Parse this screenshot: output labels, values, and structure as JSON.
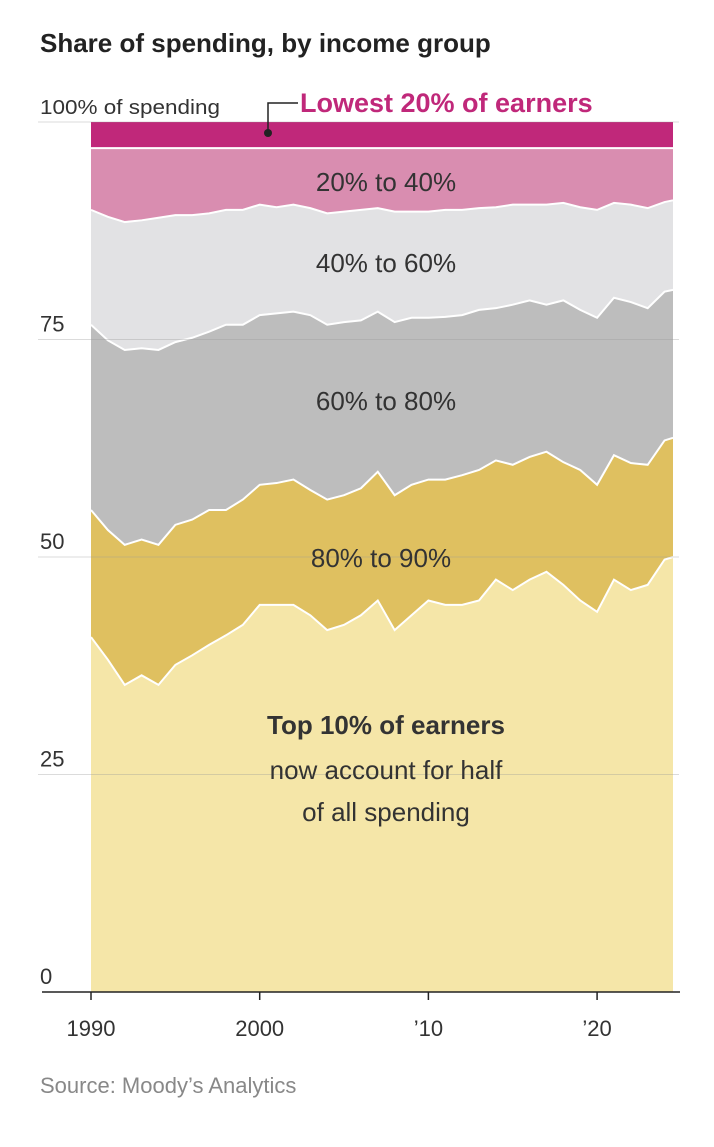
{
  "chart_data": {
    "type": "stacked-area",
    "title": "Share of spending, by income group",
    "source": "Source: Moody’s Analytics",
    "annotation": [
      "now account for half",
      "of all spending"
    ],
    "x": [
      1990,
      1991,
      1992,
      1993,
      1994,
      1995,
      1996,
      1997,
      1998,
      1999,
      2000,
      2001,
      2002,
      2003,
      2004,
      2005,
      2006,
      2007,
      2008,
      2009,
      2010,
      2011,
      2012,
      2013,
      2014,
      2015,
      2016,
      2017,
      2018,
      2019,
      2020,
      2021,
      2022,
      2023,
      2024,
      2024.5
    ],
    "xlim": [
      1990,
      2024.5
    ],
    "xticks": [
      1990,
      2000,
      {
        "value": 2010,
        "label": "’10"
      },
      {
        "value": 2020,
        "label": "’20"
      }
    ],
    "ylim": [
      0,
      100
    ],
    "yticks": [
      0,
      25,
      50,
      75,
      {
        "value": 100,
        "label": "100% of spending"
      }
    ],
    "grid": true,
    "series": [
      {
        "name": "Top 10% of earners",
        "color": "#f5e6a8",
        "values": [
          40.8,
          38.2,
          35.3,
          36.4,
          35.3,
          37.6,
          38.7,
          39.9,
          41,
          42.2,
          44.5,
          44.5,
          44.5,
          43.3,
          41.6,
          42.2,
          43.3,
          45,
          41.6,
          43.3,
          45,
          44.5,
          44.5,
          45,
          47.4,
          46.2,
          47.4,
          48.3,
          46.8,
          45,
          43.7,
          47.4,
          46.2,
          46.8,
          49.7,
          50
        ]
      },
      {
        "name": "80% to 90%",
        "color": "#dfc060",
        "values": [
          14.6,
          14.9,
          16.1,
          15.6,
          16.1,
          16.1,
          15.6,
          15.5,
          14.4,
          14.4,
          13.8,
          14,
          14.4,
          14.4,
          15,
          14.9,
          14.6,
          14.8,
          15.5,
          15,
          13.9,
          14.4,
          14.9,
          15,
          13.7,
          14.4,
          14.1,
          13.8,
          14.1,
          15,
          14.6,
          14.3,
          14.6,
          13.8,
          13.7,
          13.7
        ]
      },
      {
        "name": "60% to 80%",
        "color": "#bdbdbd",
        "values": [
          21.3,
          21.8,
          22.4,
          22,
          22.4,
          21,
          20.9,
          20.5,
          21.3,
          20.1,
          19.5,
          19.5,
          19.3,
          20.1,
          20.1,
          19.9,
          19.3,
          18.4,
          19.9,
          19.2,
          18.6,
          18.7,
          18.4,
          18.4,
          17.5,
          18.4,
          18,
          16.9,
          18.6,
          18.4,
          19.2,
          18.1,
          18.5,
          18,
          17.1,
          17
        ]
      },
      {
        "name": "40% to 60%",
        "color": "#e2e2e4",
        "values": [
          13.2,
          14.2,
          14.7,
          14.7,
          15.2,
          14.6,
          14.1,
          13.6,
          13.2,
          13.2,
          12.7,
          12.2,
          12.3,
          12.3,
          12.8,
          12.7,
          12.7,
          11.9,
          12.7,
          12.2,
          12.2,
          12.3,
          12.1,
          11.7,
          11.6,
          11.5,
          11,
          11.5,
          11.2,
          11.8,
          12.4,
          10.9,
          11.2,
          11.5,
          10.3,
          10.3
        ]
      },
      {
        "name": "20% to 40%",
        "color": "#d98db0",
        "values": [
          7.1,
          7.9,
          8.5,
          8.3,
          8,
          7.7,
          7.7,
          7.5,
          7.1,
          7.1,
          6.5,
          6.8,
          6.5,
          6.9,
          7.5,
          7.3,
          7.1,
          6.9,
          7.3,
          7.3,
          7.3,
          7.1,
          7.1,
          6.9,
          6.8,
          6.5,
          6.5,
          6.5,
          6.3,
          6.8,
          7.1,
          6.3,
          6.5,
          6.9,
          6.2,
          6
        ]
      },
      {
        "name": "Lowest 20% of earners",
        "color": "#c0287a",
        "values": [
          3,
          3,
          3,
          3,
          3,
          3,
          3,
          3,
          3,
          3,
          3,
          3,
          3,
          3,
          3,
          3,
          3,
          3,
          3,
          3,
          3,
          3,
          3,
          3,
          3,
          3,
          3,
          3,
          3,
          3,
          3,
          3,
          3,
          3,
          3,
          3
        ]
      }
    ]
  }
}
